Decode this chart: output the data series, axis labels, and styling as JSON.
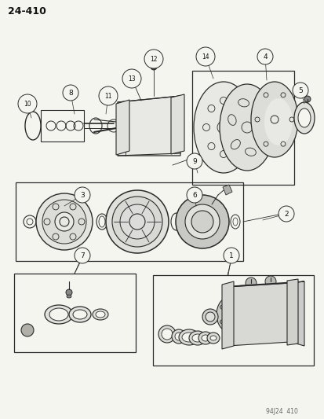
{
  "page_id": "24-410",
  "footer_text": "94J24  410",
  "background_color": "#f5f5f0",
  "line_color": "#2a2a2a",
  "text_color": "#111111",
  "fig_width": 4.14,
  "fig_height": 5.33,
  "dpi": 100
}
